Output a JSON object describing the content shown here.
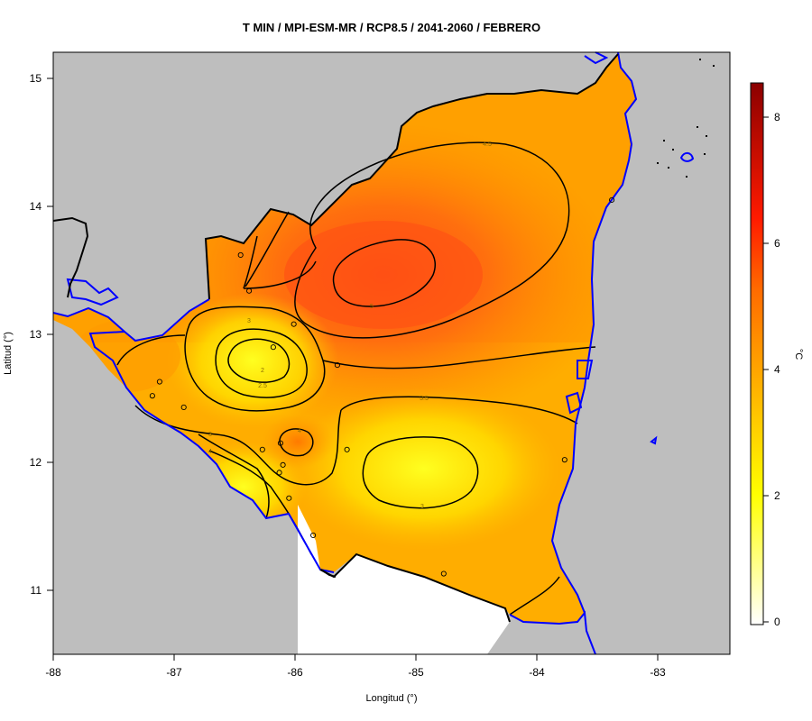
{
  "title": "T MIN / MPI-ESM-MR / RCP8.5 / 2041-2060 / FEBRERO",
  "xlabel": "Longitud (°)",
  "ylabel": "Latitud (°)",
  "x_ticks": [
    "-88",
    "-87",
    "-86",
    "-85",
    "-84",
    "-83"
  ],
  "y_ticks": [
    "11",
    "12",
    "13",
    "14",
    "15"
  ],
  "colorbar": {
    "unit": "°C",
    "ticks": [
      "0",
      "2",
      "4",
      "6",
      "8"
    ],
    "range": [
      0,
      8.5
    ],
    "colors": [
      "#ffffff",
      "#ffff00",
      "#ffa500",
      "#ff4500",
      "#ff0000",
      "#8b0000"
    ]
  },
  "contour_labels": [
    "4.5",
    "5",
    "3",
    "2",
    "2.5",
    "4",
    "3.5",
    "3",
    "3",
    "4"
  ],
  "map_colors": {
    "ocean_land_background": "#bebebe",
    "coastline": "#0000ff",
    "borders": "#000000",
    "field_low": "#ffe600",
    "field_mid": "#ffa500",
    "field_high": "#ff5a10"
  },
  "chart_data": {
    "type": "heatmap",
    "variable": "T MIN",
    "units": "°C",
    "xlim": [
      -88,
      -82.4
    ],
    "ylim": [
      10.5,
      15.2
    ],
    "field_range": [
      2.0,
      5.2
    ],
    "contour_levels": [
      2,
      2.5,
      3,
      3.5,
      4,
      4.5,
      5
    ],
    "stations": [
      [
        -86.45,
        13.62
      ],
      [
        -86.38,
        13.34
      ],
      [
        -86.01,
        13.08
      ],
      [
        -86.18,
        12.9
      ],
      [
        -85.65,
        12.76
      ],
      [
        -87.12,
        12.63
      ],
      [
        -87.18,
        12.52
      ],
      [
        -86.92,
        12.43
      ],
      [
        -86.12,
        12.15
      ],
      [
        -86.27,
        12.1
      ],
      [
        -86.1,
        11.98
      ],
      [
        -85.57,
        12.1
      ],
      [
        -86.13,
        11.92
      ],
      [
        -86.05,
        11.72
      ],
      [
        -85.85,
        11.43
      ],
      [
        -84.77,
        11.13
      ],
      [
        -83.77,
        12.02
      ],
      [
        -83.38,
        14.05
      ]
    ]
  }
}
